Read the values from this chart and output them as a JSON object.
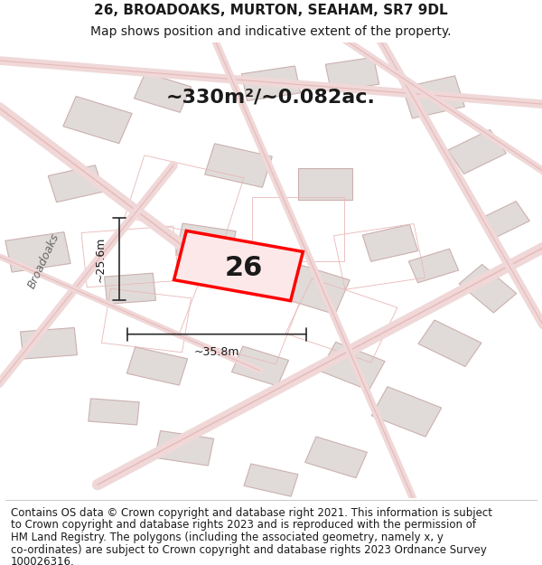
{
  "title_line1": "26, BROADOAKS, MURTON, SEAHAM, SR7 9DL",
  "title_line2": "Map shows position and indicative extent of the property.",
  "area_label": "~330m²/~0.082ac.",
  "number_label": "26",
  "dim_vertical": "~25.6m",
  "dim_horizontal": "~35.8m",
  "street_label": "Broadoaks",
  "footer_lines": [
    "Contains OS data © Crown copyright and database right 2021. This information is subject",
    "to Crown copyright and database rights 2023 and is reproduced with the permission of",
    "HM Land Registry. The polygons (including the associated geometry, namely x, y",
    "co-ordinates) are subject to Crown copyright and database rights 2023 Ordnance Survey",
    "100026316."
  ],
  "map_bg": "#f7f3f1",
  "building_fill": "#e0dbd8",
  "building_edge": "#ccb0b0",
  "road_color": "#e8b8b8",
  "road_fill": "#f0d8d8",
  "highlight_color": "#ff0000",
  "highlight_fill": "#fce8e8",
  "text_color": "#1a1a1a",
  "dim_color": "#2a2a2a",
  "title_fontsize": 11,
  "subtitle_fontsize": 10,
  "area_fontsize": 16,
  "number_fontsize": 22,
  "footer_fontsize": 8.5,
  "street_fontsize": 9
}
